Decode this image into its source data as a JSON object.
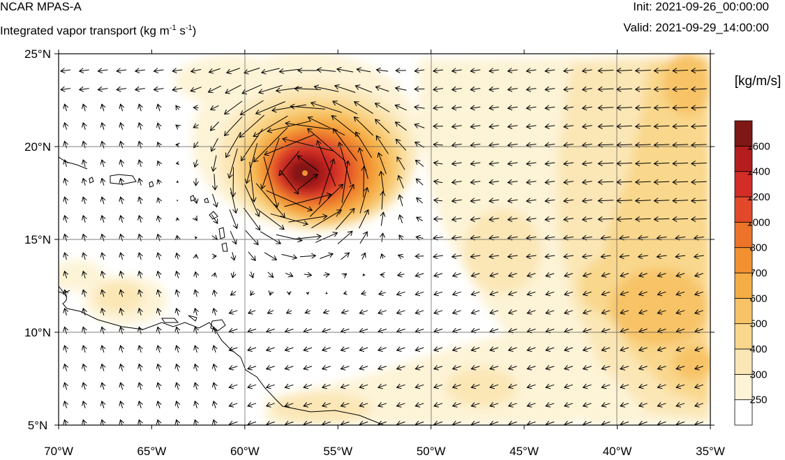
{
  "header": {
    "model": "NCAR MPAS-A",
    "field_prefix": "Integrated vapor transport (kg m",
    "field_exp1": "-1",
    "field_mid": " s",
    "field_exp2": "-1",
    "field_suffix": ")",
    "init": "Init: 2021-09-26_00:00:00",
    "valid": "Valid: 2021-09-29_14:00:00"
  },
  "map": {
    "lon_range": [
      -70,
      -35
    ],
    "lat_range": [
      5,
      25
    ],
    "lon_ticks": [
      {
        "value": -70,
        "label": "70°W"
      },
      {
        "value": -65,
        "label": "65°W"
      },
      {
        "value": -60,
        "label": "60°W"
      },
      {
        "value": -55,
        "label": "55°W"
      },
      {
        "value": -50,
        "label": "50°W"
      },
      {
        "value": -45,
        "label": "45°W"
      },
      {
        "value": -40,
        "label": "40°W"
      },
      {
        "value": -35,
        "label": "35°W"
      }
    ],
    "lat_ticks": [
      {
        "value": 25,
        "label": "25°N"
      },
      {
        "value": 20,
        "label": "20°N"
      },
      {
        "value": 15,
        "label": "15°N"
      },
      {
        "value": 10,
        "label": "10°N"
      },
      {
        "value": 5,
        "label": "5°N"
      }
    ],
    "gridlines_lon": [
      -60,
      -50,
      -40
    ],
    "gridlines_lat": [
      20,
      15,
      10
    ],
    "storm_center": {
      "lon": -57,
      "lat": 18.6
    }
  },
  "colorbar": {
    "unit": "[kg/m/s]",
    "levels": [
      {
        "label": "250",
        "color": "#ffffff"
      },
      {
        "label": "300",
        "color": "#fdf3d6"
      },
      {
        "label": "400",
        "color": "#fbe6b5"
      },
      {
        "label": "500",
        "color": "#f9d78c"
      },
      {
        "label": "600",
        "color": "#f7c366"
      },
      {
        "label": "700",
        "color": "#f5ad45"
      },
      {
        "label": "800",
        "color": "#f29130"
      },
      {
        "label": "1000",
        "color": "#ec7329"
      },
      {
        "label": "1200",
        "color": "#e2492a"
      },
      {
        "label": "1400",
        "color": "#d22d26"
      },
      {
        "label": "1600",
        "color": "#b41d1e"
      },
      {
        "label": "",
        "color": "#7e1715"
      }
    ]
  }
}
